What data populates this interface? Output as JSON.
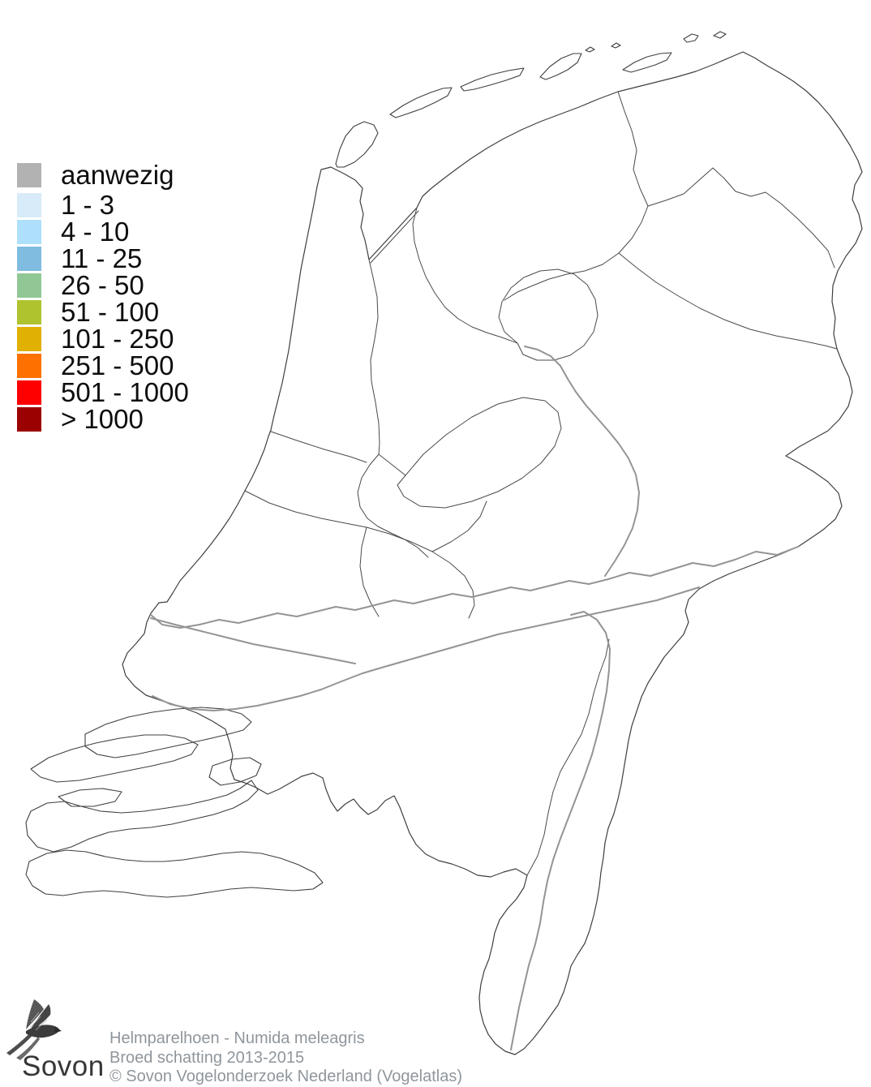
{
  "legend": {
    "items": [
      {
        "label": "aanwezig",
        "color": "#b2b2b2"
      },
      {
        "label": "1 - 3",
        "color": "#d7ebf8"
      },
      {
        "label": "4 - 10",
        "color": "#aee0fb"
      },
      {
        "label": "11 - 25",
        "color": "#80bcdf"
      },
      {
        "label": "26 - 50",
        "color": "#91c795"
      },
      {
        "label": "51 - 100",
        "color": "#afc32f"
      },
      {
        "label": "101 - 250",
        "color": "#e0b002"
      },
      {
        "label": "251 - 500",
        "color": "#fe7100"
      },
      {
        "label": "501 - 1000",
        "color": "#fe0000"
      },
      {
        "label": "> 1000",
        "color": "#9c0101"
      }
    ]
  },
  "footer": {
    "logo_text": "Sovon",
    "caption_line1": "Helmparelhoen - Numida meleagris",
    "caption_line2": "Broed schatting 2013-2015",
    "caption_line3": "© Sovon Vogelonderzoek Nederland (Vogelatlas)"
  },
  "colors": {
    "coastline": "#3f3f3f",
    "province_border": "#4a4a4a",
    "river": "#949494",
    "caption_text": "#8f969c",
    "logo_text": "#373737"
  }
}
